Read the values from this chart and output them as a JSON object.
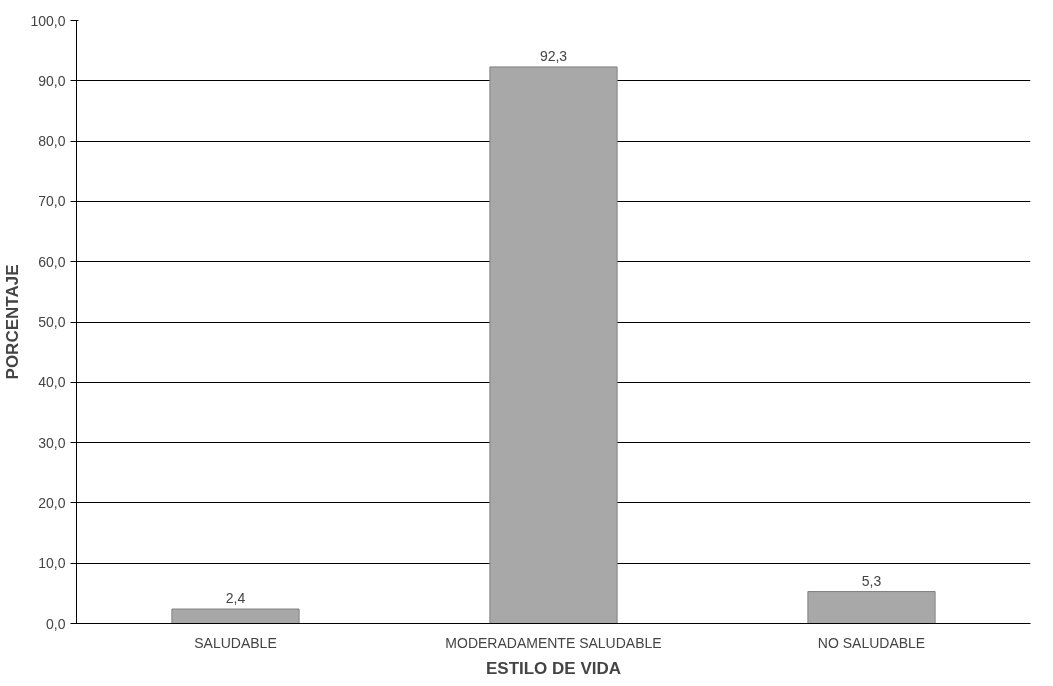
{
  "chart_data": {
    "type": "bar",
    "xlabel": "ESTILO DE VIDA",
    "ylabel": "PORCENTAJE",
    "categories": [
      "SALUDABLE",
      "MODERADAMENTE SALUDABLE",
      "NO SALUDABLE"
    ],
    "values": [
      2.4,
      92.3,
      5.3
    ],
    "color": "#a8a8a8",
    "value_labels": [
      "2,4",
      "92,3",
      "5,3"
    ],
    "ylim": [
      0,
      100
    ],
    "yticks": [
      {
        "value": 0,
        "label": "0,0"
      },
      {
        "value": 10,
        "label": "10,0"
      },
      {
        "value": 20,
        "label": "20,0"
      },
      {
        "value": 30,
        "label": "30,0"
      },
      {
        "value": 40,
        "label": "40,0"
      },
      {
        "value": 50,
        "label": "50,0"
      },
      {
        "value": 60,
        "label": "60,0"
      },
      {
        "value": 70,
        "label": "70,0"
      },
      {
        "value": 80,
        "label": "80,0"
      },
      {
        "value": 90,
        "label": "90,0"
      },
      {
        "value": 100,
        "label": "100,0"
      }
    ],
    "grid": "y"
  }
}
